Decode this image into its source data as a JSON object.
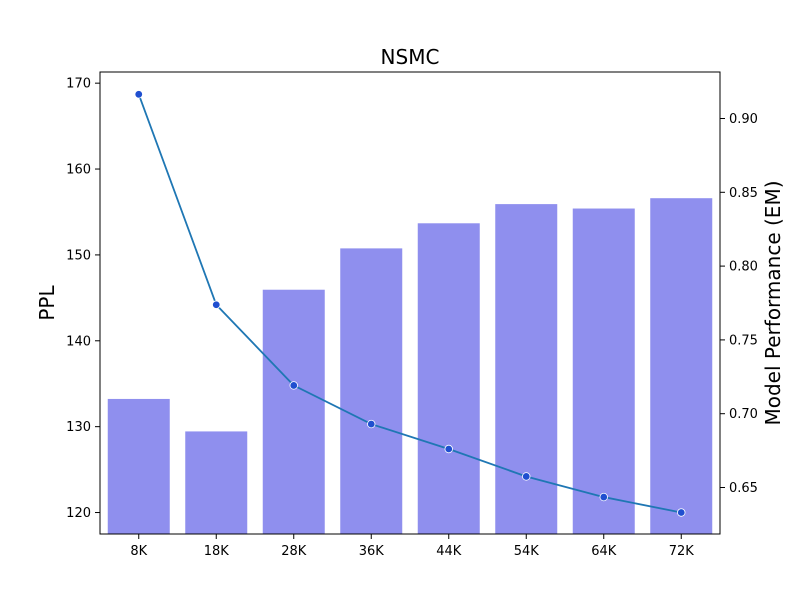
{
  "chart_data": {
    "type": "bar+line",
    "title": "NSMC",
    "categories": [
      "8K",
      "18K",
      "28K",
      "36K",
      "44K",
      "54K",
      "64K",
      "72K"
    ],
    "bars": {
      "axis": "right",
      "color": "#8f8fee",
      "values": [
        0.71,
        0.688,
        0.784,
        0.812,
        0.829,
        0.842,
        0.839,
        0.846
      ]
    },
    "line": {
      "axis": "left",
      "color": "#1f77b4",
      "marker_color": "#1f4fd0",
      "values": [
        168.7,
        144.2,
        134.8,
        130.3,
        127.4,
        124.2,
        121.8,
        120.0
      ]
    },
    "left_axis": {
      "label": "PPL",
      "ylim": [
        117.5,
        171.3
      ],
      "ticks": [
        120,
        130,
        140,
        150,
        160,
        170
      ]
    },
    "right_axis": {
      "label": "Model Performance (EM)",
      "ylim": [
        0.6185,
        0.9315
      ],
      "ticks": [
        0.65,
        0.7,
        0.75,
        0.8,
        0.85,
        0.9
      ],
      "tick_labels": [
        "0.65",
        "0.70",
        "0.75",
        "0.80",
        "0.85",
        "0.90"
      ]
    },
    "grid": false,
    "legend": "none"
  }
}
